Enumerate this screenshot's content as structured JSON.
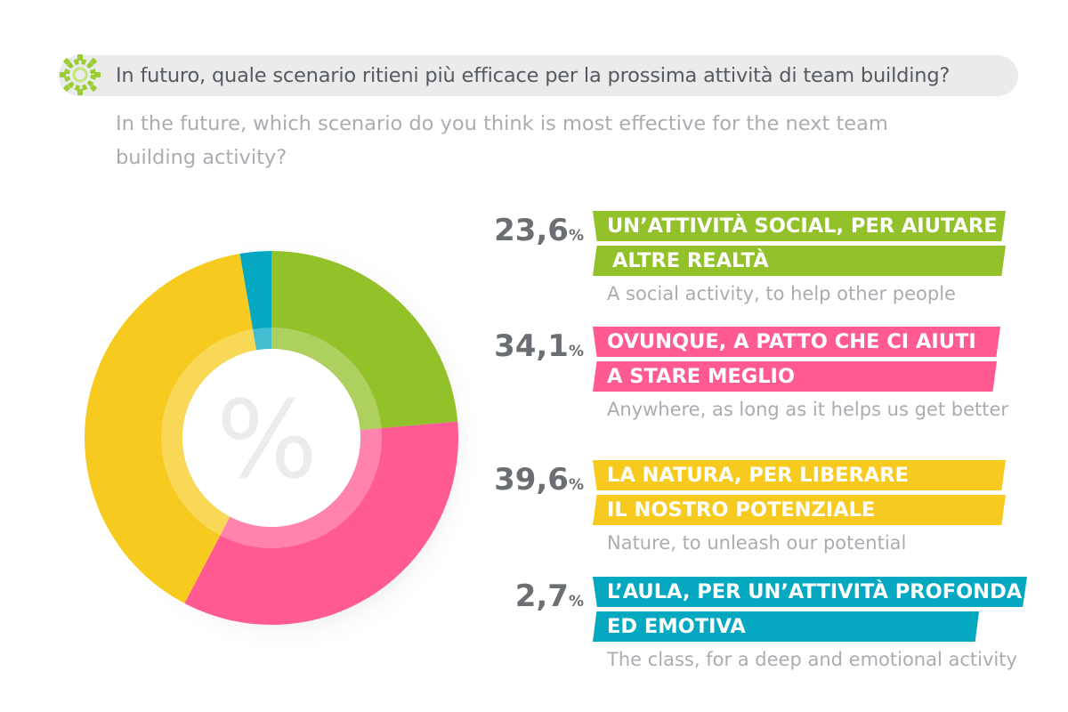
{
  "header": {
    "title_it": "In futuro, quale scenario ritieni più efficace per la prossima attività di team building?",
    "title_en": "In the future, which scenario do you think is most effective for the next team building activity?",
    "icon": "gear-icon",
    "icon_color": "#9acd32"
  },
  "chart_data": {
    "type": "pie",
    "donut": true,
    "center_symbol": "%",
    "slices": [
      {
        "value": 23.6,
        "color": "#93c12a",
        "label_it": "UN'ATTIVITÀ SOCIAL, PER AIUTARE ALTRE REALTÀ",
        "label_en": "A social activity, to help other people"
      },
      {
        "value": 34.1,
        "color": "#ff5a91",
        "label_it": "OVUNQUE, A PATTO CHE CI AIUTI A STARE MEGLIO",
        "label_en": "Anywhere, as long as it helps us get better"
      },
      {
        "value": 39.6,
        "color": "#f7ca1f",
        "label_it": "LA NATURA, PER LIBERARE IL NOSTRO POTENZIALE",
        "label_en": "Nature, to unleash our potential"
      },
      {
        "value": 2.7,
        "color": "#04a9c1",
        "label_it": "L'AULA, PER UN'ATTIVITÀ PROFONDA ED EMOTIVA",
        "label_en": "The class, for a deep and emotional activity"
      }
    ]
  },
  "legend": [
    {
      "pct": "23,6",
      "unit": "%",
      "line1": "UN’ATTIVITÀ SOCIAL, PER AIUTARE",
      "line2": "ALTRE REALTÀ",
      "desc": "A social activity, to help other people",
      "color": "#93c12a"
    },
    {
      "pct": "34,1",
      "unit": "%",
      "line1": "OVUNQUE, A PATTO CHE CI AIUTI",
      "line2": "A STARE MEGLIO",
      "desc": "Anywhere, as long as it helps us get better",
      "color": "#ff5a91"
    },
    {
      "pct": "39,6",
      "unit": "%",
      "line1": "LA NATURA, PER LIBERARE",
      "line2": "IL NOSTRO POTENZIALE",
      "desc": "Nature, to unleash our potential",
      "color": "#f7ca1f"
    },
    {
      "pct": "2,7",
      "unit": "%",
      "line1": "L’AULA, PER UN’ATTIVITÀ PROFONDA",
      "line2": "ED EMOTIVA",
      "desc": "The class, for a deep and emotional activity",
      "color": "#04a9c1"
    }
  ]
}
